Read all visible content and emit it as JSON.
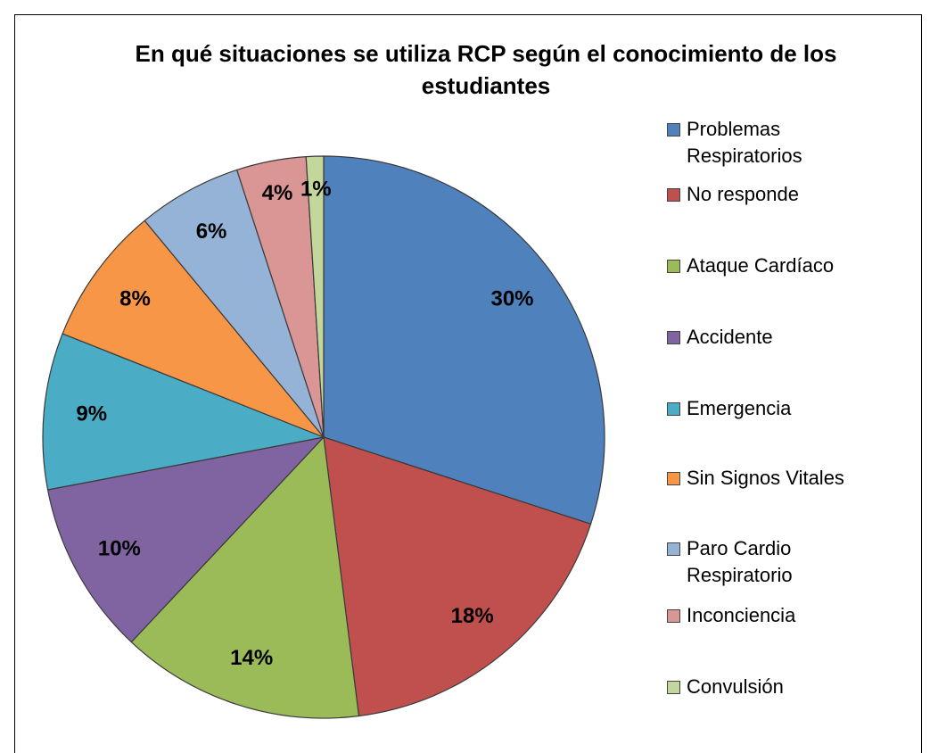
{
  "chart_data": {
    "type": "pie",
    "title": "En qué situaciones se utiliza RCP según el conocimiento de los estudiantes",
    "categories": [
      "Problemas Respiratorios",
      "No responde",
      "Ataque Cardíaco",
      "Accidente",
      "Emergencia",
      "Sin Signos Vitales",
      "Paro Cardio Respiratorio",
      "Inconciencia",
      "Convulsión"
    ],
    "values": [
      30,
      18,
      14,
      10,
      9,
      8,
      6,
      4,
      1
    ],
    "value_labels": [
      "30%",
      "18%",
      "14%",
      "10%",
      "9%",
      "8%",
      "6%",
      "4%",
      "1%"
    ],
    "colors": [
      "#4f81bd",
      "#c0504d",
      "#9bbb59",
      "#8064a2",
      "#4bacc6",
      "#f79646",
      "#95b3d7",
      "#d99694",
      "#c3d69b"
    ],
    "legend": "right"
  }
}
